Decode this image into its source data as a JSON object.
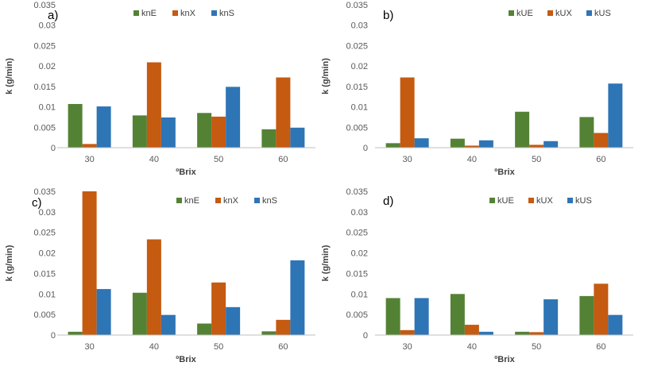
{
  "colors": {
    "series1": "#548235",
    "series2": "#C55A11",
    "series3": "#2E75B6",
    "axis": "#BFBFBF",
    "text": "#595959"
  },
  "chart_data": [
    {
      "type": "bar",
      "panel_label": "a)",
      "categories": [
        "30",
        "40",
        "50",
        "60"
      ],
      "series": [
        {
          "name": "knE",
          "values": [
            0.0107,
            0.0079,
            0.0085,
            0.0045
          ]
        },
        {
          "name": "knX",
          "values": [
            0.0009,
            0.0209,
            0.0076,
            0.0172
          ]
        },
        {
          "name": "knS",
          "values": [
            0.0101,
            0.0074,
            0.0149,
            0.0049
          ]
        }
      ],
      "xlabel": "ºBrix",
      "ylabel": "k (g/min)",
      "ylim": [
        0,
        0.035
      ],
      "yticks": [
        "0",
        "0.005",
        "0.01",
        "0.015",
        "0.02",
        "0.025",
        "0.03",
        "0.035"
      ],
      "legend_position": "top-right"
    },
    {
      "type": "bar",
      "panel_label": "b)",
      "categories": [
        "30",
        "40",
        "50",
        "60"
      ],
      "series": [
        {
          "name": "kUE",
          "values": [
            0.0011,
            0.0022,
            0.0088,
            0.0075
          ]
        },
        {
          "name": "kUX",
          "values": [
            0.0172,
            0.0005,
            0.0007,
            0.0036
          ]
        },
        {
          "name": "kUS",
          "values": [
            0.0023,
            0.0018,
            0.0016,
            0.0157
          ]
        }
      ],
      "xlabel": "ºBrix",
      "ylabel": "k (g/min)",
      "ylim": [
        0,
        0.035
      ],
      "yticks": [
        "0",
        "0.005",
        "0.01",
        "0.015",
        "0.02",
        "0.025",
        "0.03",
        "0.035"
      ],
      "legend_position": "top-right"
    },
    {
      "type": "bar",
      "panel_label": "c)",
      "categories": [
        "30",
        "40",
        "50",
        "60"
      ],
      "series": [
        {
          "name": "knE",
          "values": [
            0.0008,
            0.0103,
            0.0028,
            0.0009
          ]
        },
        {
          "name": "knX",
          "values": [
            0.035,
            0.0233,
            0.0128,
            0.0037
          ]
        },
        {
          "name": "knS",
          "values": [
            0.0112,
            0.0049,
            0.0068,
            0.0182
          ]
        }
      ],
      "xlabel": "ºBrix",
      "ylabel": "k (g/min)",
      "ylim": [
        0,
        0.035
      ],
      "yticks": [
        "0",
        "0.005",
        "0.01",
        "0.015",
        "0.02",
        "0.025",
        "0.03",
        "0.035"
      ],
      "legend_position": "top-right"
    },
    {
      "type": "bar",
      "panel_label": "d)",
      "categories": [
        "30",
        "40",
        "50",
        "60"
      ],
      "series": [
        {
          "name": "kUE",
          "values": [
            0.009,
            0.01,
            0.0008,
            0.0095
          ]
        },
        {
          "name": "kUX",
          "values": [
            0.0012,
            0.0025,
            0.0007,
            0.0125
          ]
        },
        {
          "name": "kUS",
          "values": [
            0.009,
            0.0008,
            0.0087,
            0.0049
          ]
        }
      ],
      "xlabel": "ºBrix",
      "ylabel": "k (g/min)",
      "ylim": [
        0,
        0.035
      ],
      "yticks": [
        "0",
        "0.005",
        "0.01",
        "0.015",
        "0.02",
        "0.025",
        "0.03",
        "0.035"
      ],
      "legend_position": "top-right"
    }
  ]
}
